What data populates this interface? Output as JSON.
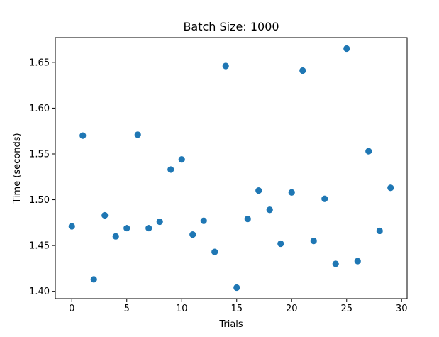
{
  "chart_data": {
    "type": "scatter",
    "title": "Batch Size: 1000",
    "xlabel": "Trials",
    "ylabel": "Time (seconds)",
    "xlim": [
      -1.5,
      30.5
    ],
    "ylim": [
      1.392,
      1.677
    ],
    "xticks": [
      0,
      5,
      10,
      15,
      20,
      25,
      30
    ],
    "xtick_labels": [
      "0",
      "5",
      "10",
      "15",
      "20",
      "25",
      "30"
    ],
    "yticks": [
      1.4,
      1.45,
      1.5,
      1.55,
      1.6,
      1.65
    ],
    "ytick_labels": [
      "1.40",
      "1.45",
      "1.50",
      "1.55",
      "1.60",
      "1.65"
    ],
    "grid": false,
    "legend": false,
    "marker_color": "#1f77b4",
    "series": [
      {
        "x": [
          0,
          1,
          2,
          3,
          4,
          5,
          6,
          7,
          8,
          9,
          10,
          11,
          12,
          13,
          14,
          15,
          16,
          17,
          18,
          19,
          20,
          21,
          22,
          23,
          24,
          25,
          26,
          27,
          28,
          29
        ],
        "y": [
          1.471,
          1.57,
          1.413,
          1.483,
          1.46,
          1.469,
          1.571,
          1.469,
          1.476,
          1.533,
          1.544,
          1.462,
          1.477,
          1.443,
          1.646,
          1.404,
          1.479,
          1.51,
          1.489,
          1.452,
          1.508,
          1.641,
          1.455,
          1.501,
          1.43,
          1.665,
          1.433,
          1.553,
          1.466,
          1.513
        ]
      }
    ]
  }
}
